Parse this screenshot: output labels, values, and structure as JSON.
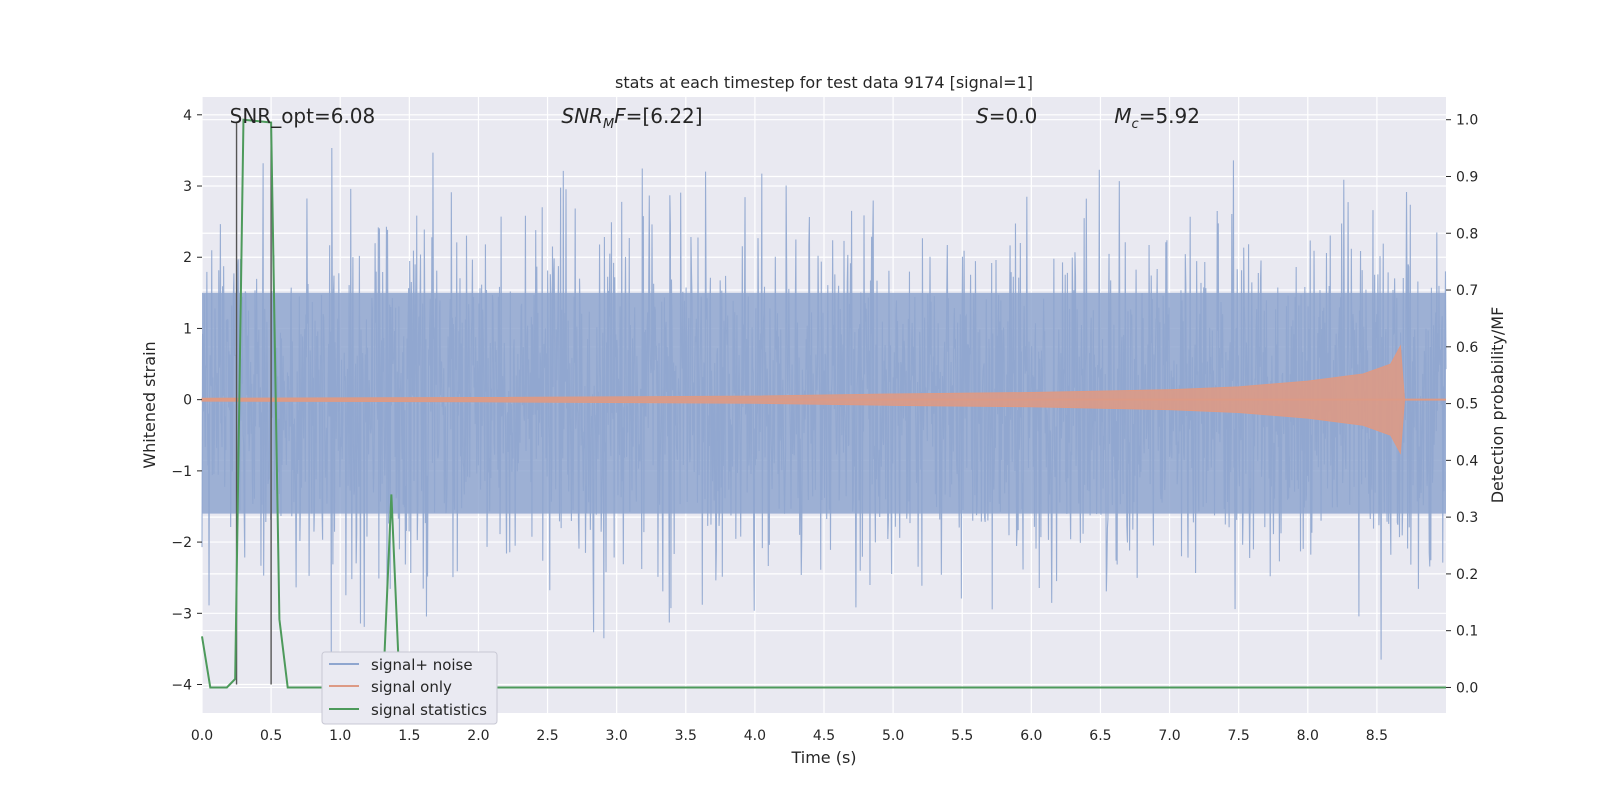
{
  "chart_data": {
    "type": "line",
    "title": "stats at each timestep for test data 9174 [signal=1]",
    "xlabel": "Time (s)",
    "ylabel_left": "Whitened strain",
    "ylabel_right": "Detection probability/MF",
    "xlim": [
      0.0,
      9.0
    ],
    "ylim_left": [
      -4.4,
      4.25
    ],
    "ylim_right": [
      -0.045,
      1.04
    ],
    "x_ticks": [
      "0.0",
      "0.5",
      "1.0",
      "1.5",
      "2.0",
      "2.5",
      "3.0",
      "3.5",
      "4.0",
      "4.5",
      "5.0",
      "5.5",
      "6.0",
      "6.5",
      "7.0",
      "7.5",
      "8.0",
      "8.5"
    ],
    "y_ticks_left": [
      "4",
      "3",
      "2",
      "1",
      "0",
      "−1",
      "−2",
      "−3",
      "−4"
    ],
    "y_ticks_right": [
      "1.0",
      "0.9",
      "0.8",
      "0.7",
      "0.6",
      "0.5",
      "0.4",
      "0.3",
      "0.2",
      "0.1",
      "0.0"
    ],
    "grid": true,
    "legend_position": "lower-left",
    "annotations": [
      {
        "id": "snr_opt",
        "text": "SNR_opt=6.08",
        "x": 0.2
      },
      {
        "id": "snr_mf",
        "text": "SNR",
        "sub": "M",
        "rest": "F=[6.22]",
        "x": 2.6
      },
      {
        "id": "s_val",
        "text": "S",
        "rest": "=0.0",
        "x": 5.6
      },
      {
        "id": "mc_val",
        "text": "M",
        "sub": "c",
        "rest": "=5.92",
        "x": 6.6
      }
    ],
    "vertical_markers": [
      0.25,
      0.5
    ],
    "series": [
      {
        "name": "signal+ noise",
        "color": "#8fa6cf",
        "description_amplitude": {
          "core_band": [
            -1.6,
            1.5
          ],
          "peak_max": 3.9,
          "peak_min": -3.65
        },
        "x_range": [
          0.0,
          9.0
        ],
        "random_seed": 9174
      },
      {
        "name": "signal only",
        "color": "#dd9a85",
        "envelope": [
          [
            0.0,
            0.02
          ],
          [
            2.0,
            0.03
          ],
          [
            4.0,
            0.05
          ],
          [
            5.0,
            0.08
          ],
          [
            6.0,
            0.1
          ],
          [
            7.0,
            0.14
          ],
          [
            7.5,
            0.18
          ],
          [
            8.0,
            0.26
          ],
          [
            8.4,
            0.36
          ],
          [
            8.6,
            0.5
          ],
          [
            8.67,
            0.75
          ],
          [
            8.7,
            0.0
          ],
          [
            9.0,
            0.0
          ]
        ]
      },
      {
        "name": "signal statistics",
        "color": "#4d9a5b",
        "points": [
          [
            0.0,
            0.09
          ],
          [
            0.06,
            0.0
          ],
          [
            0.18,
            0.0
          ],
          [
            0.24,
            0.015
          ],
          [
            0.3,
            1.0
          ],
          [
            0.5,
            0.995
          ],
          [
            0.56,
            0.12
          ],
          [
            0.62,
            0.0
          ],
          [
            1.31,
            0.0
          ],
          [
            1.37,
            0.34
          ],
          [
            1.43,
            0.0
          ],
          [
            9.0,
            0.0
          ]
        ]
      }
    ]
  }
}
